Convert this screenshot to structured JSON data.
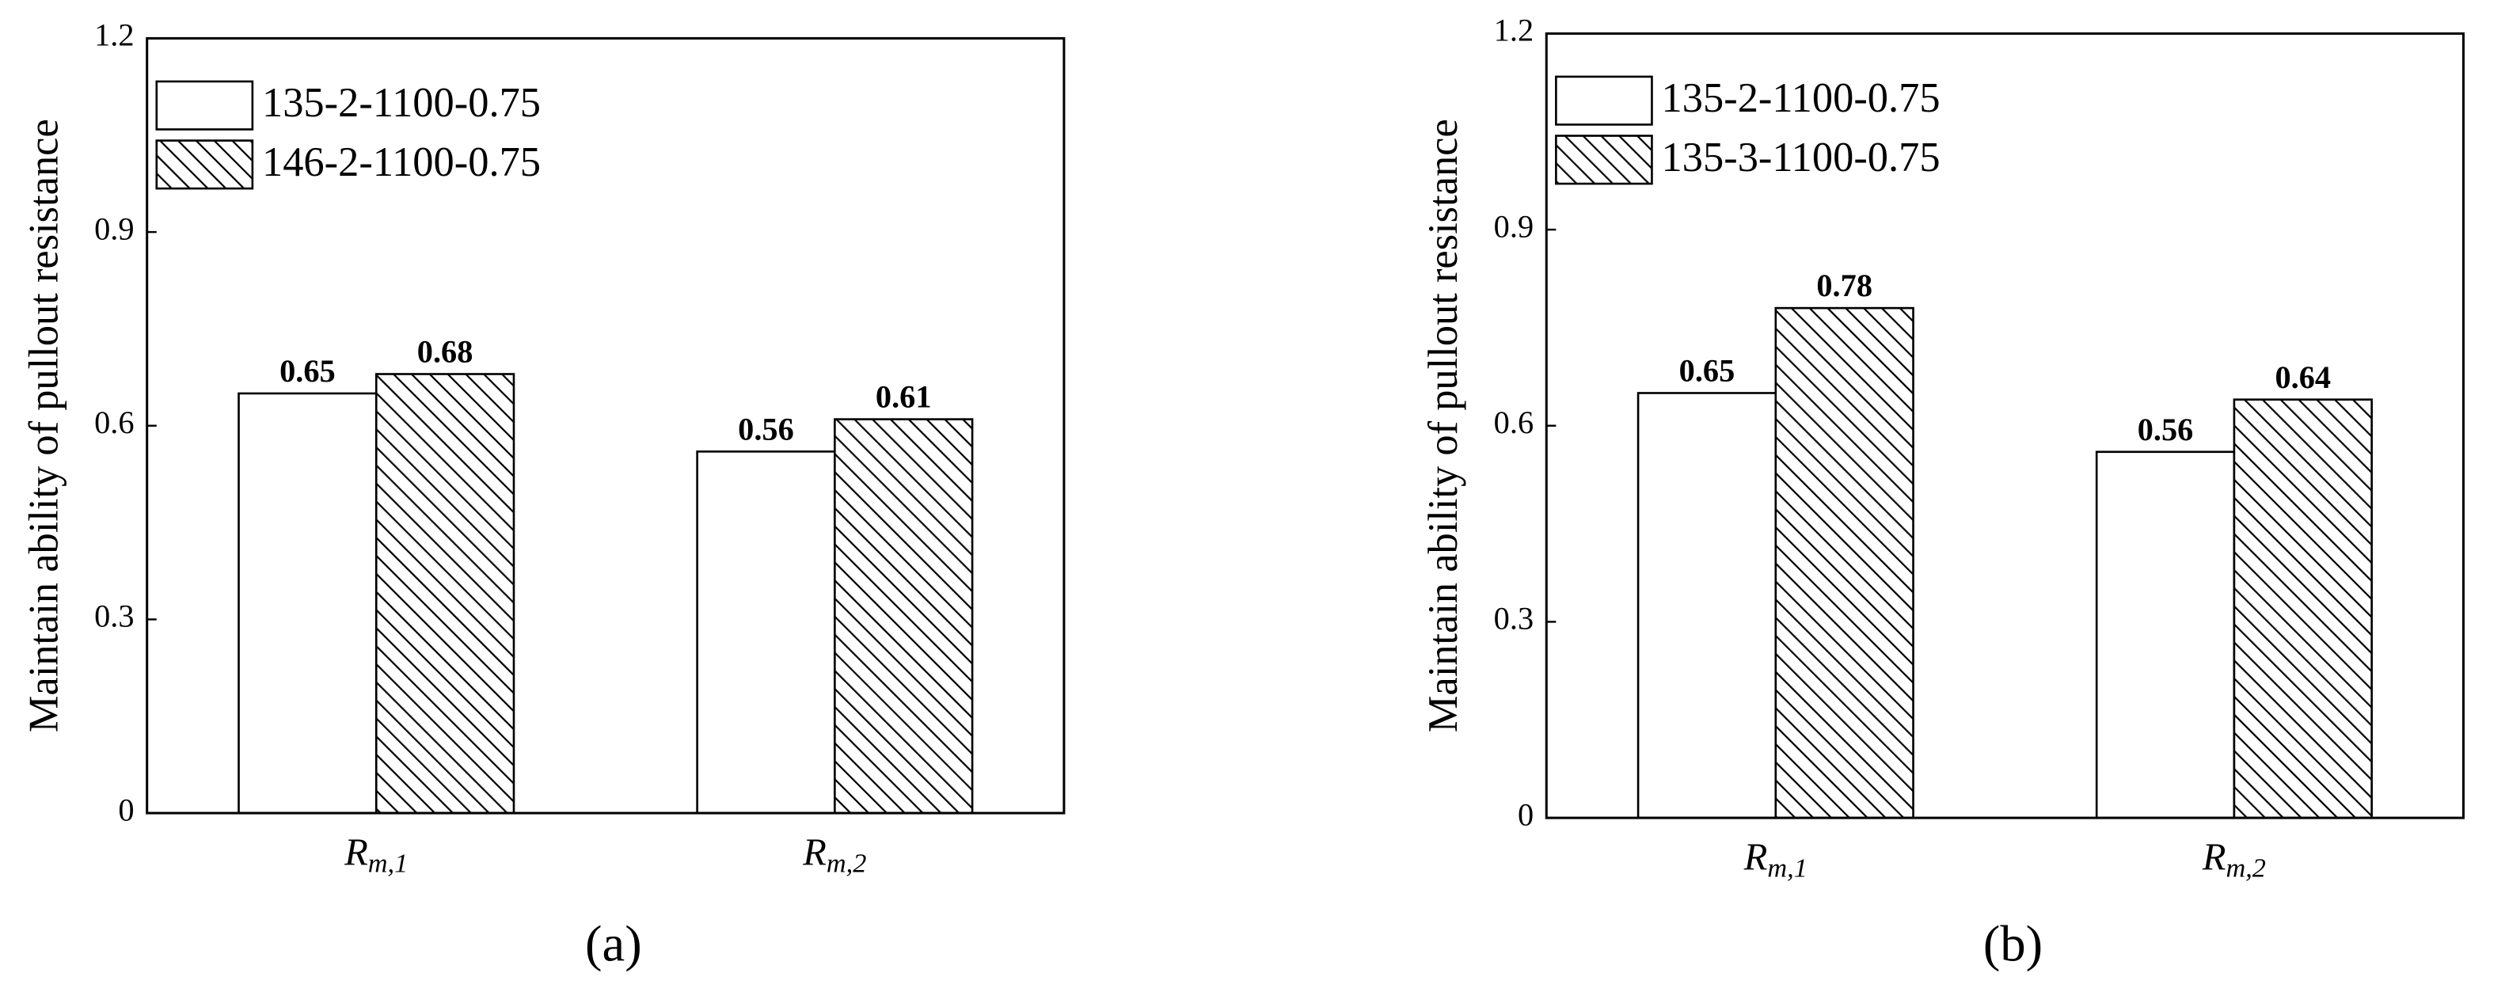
{
  "chart_data": [
    {
      "type": "bar",
      "panel_label": "(a)",
      "y_label": "Maintain ability of pullout resistance",
      "categories": [
        "Rm,1",
        "Rm,2"
      ],
      "series": [
        {
          "name": "135-2-1100-0.75",
          "color": "#ffffff",
          "values": [
            0.65,
            0.56
          ]
        },
        {
          "name": "146-2-1100-0.75",
          "color": "#000000",
          "pattern": "hatch",
          "values": [
            0.68,
            0.61
          ]
        }
      ],
      "ylim": [
        0,
        1.2
      ],
      "yticks": [
        0,
        0.3,
        0.6,
        0.9,
        1.2
      ],
      "legend": "upper left"
    },
    {
      "type": "bar",
      "panel_label": "(b)",
      "y_label": "Maintain ability of pullout resistance",
      "categories": [
        "Rm,1",
        "Rm,2"
      ],
      "series": [
        {
          "name": "135-2-1100-0.75",
          "color": "#ffffff",
          "values": [
            0.65,
            0.56
          ]
        },
        {
          "name": "135-3-1100-0.75",
          "color": "#000000",
          "pattern": "hatch",
          "values": [
            0.78,
            0.64
          ]
        }
      ],
      "ylim": [
        0,
        1.2
      ],
      "yticks": [
        0,
        0.3,
        0.6,
        0.9,
        1.2
      ],
      "legend": "upper left"
    }
  ]
}
